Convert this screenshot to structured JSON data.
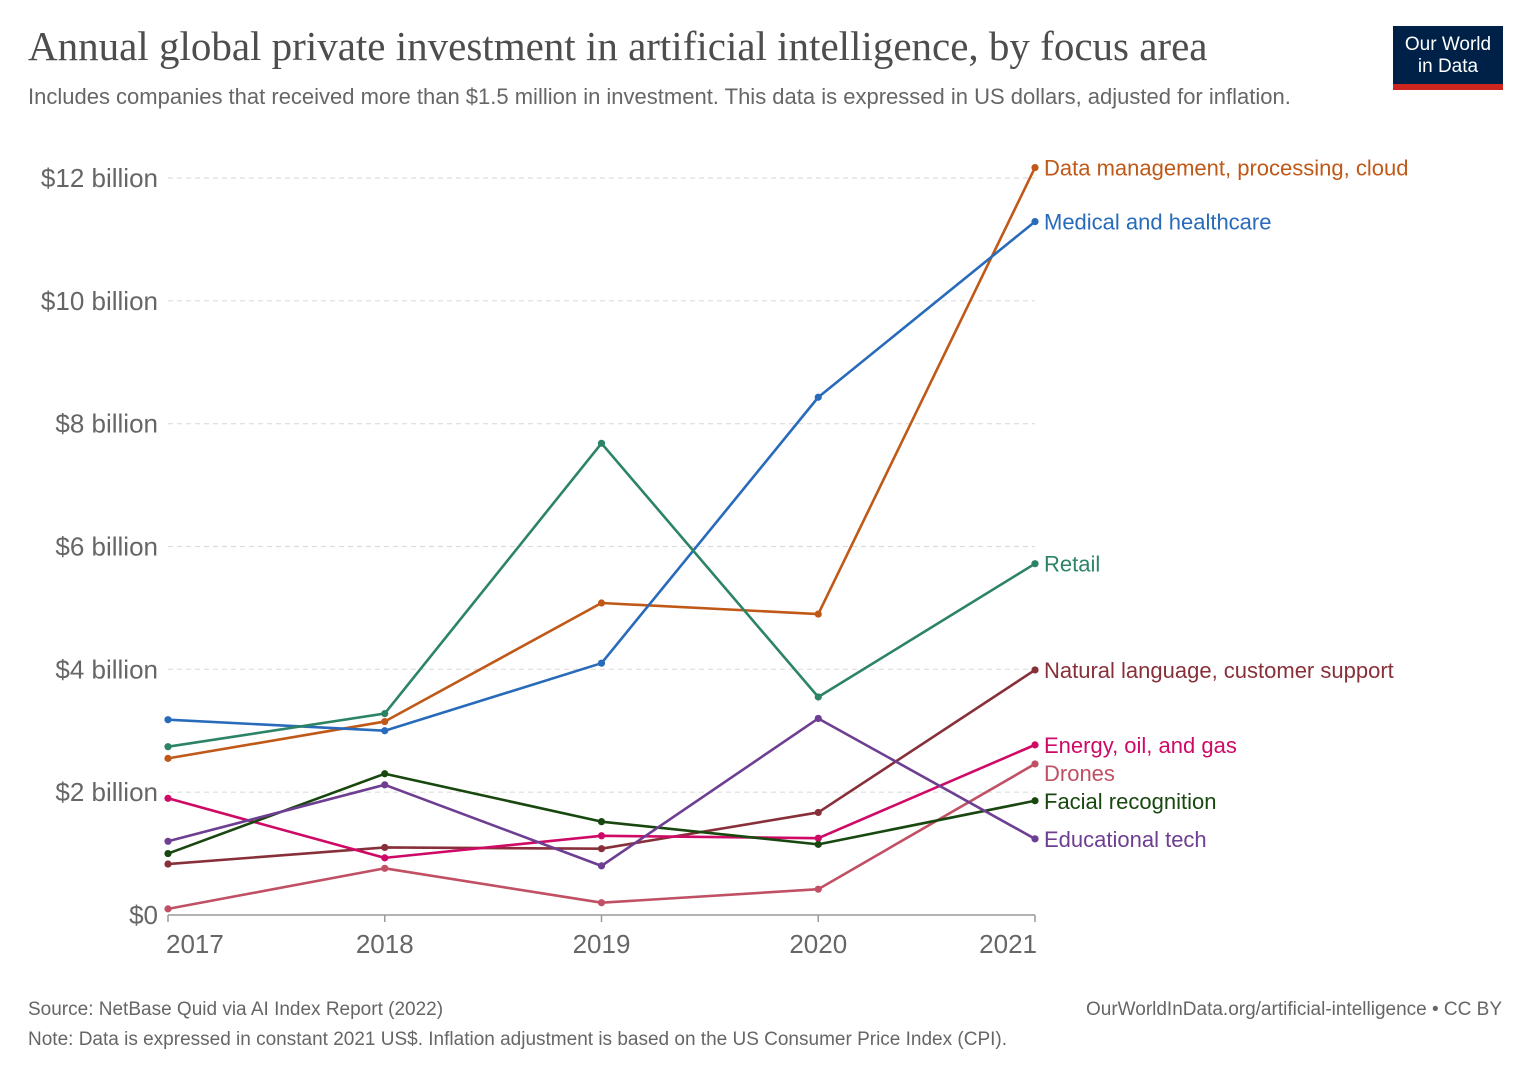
{
  "header": {
    "title": "Annual global private investment in artificial intelligence, by focus area",
    "subtitle": "Includes companies that received more than $1.5 million in investment. This data is expressed in US dollars, adjusted for inflation.",
    "logo_line1": "Our World",
    "logo_line2": "in Data"
  },
  "footer": {
    "source": "Source: NetBase Quid via AI Index Report (2022)",
    "url": "OurWorldInData.org/artificial-intelligence • CC BY",
    "note": "Note: Data is expressed in constant 2021 US$. Inflation adjustment is based on the US Consumer Price Index (CPI)."
  },
  "colors": {
    "logo_bg": "#002147",
    "logo_accent": "#ce261e",
    "grid": "#dddddd",
    "axis": "#999999",
    "tick_text": "#666666"
  },
  "chart_data": {
    "type": "line",
    "title": "Annual global private investment in artificial intelligence, by focus area",
    "xlabel": "",
    "ylabel": "",
    "x": [
      2017,
      2018,
      2019,
      2020,
      2021
    ],
    "ylim": [
      0,
      12
    ],
    "yticks": [
      {
        "value": 0,
        "label": "$0"
      },
      {
        "value": 2,
        "label": "$2 billion"
      },
      {
        "value": 4,
        "label": "$4 billion"
      },
      {
        "value": 6,
        "label": "$6 billion"
      },
      {
        "value": 8,
        "label": "$8 billion"
      },
      {
        "value": 10,
        "label": "$10 billion"
      },
      {
        "value": 12,
        "label": "$12 billion"
      }
    ],
    "grid": true,
    "legend": "line-end labels on the right",
    "series": [
      {
        "name": "Data management, processing, cloud",
        "color": "#c05917",
        "values": [
          2.55,
          3.15,
          5.08,
          4.9,
          12.17
        ]
      },
      {
        "name": "Medical and healthcare",
        "color": "#286bbb",
        "values": [
          3.18,
          3.0,
          4.1,
          8.43,
          11.29
        ]
      },
      {
        "name": "Retail",
        "color": "#2c8465",
        "values": [
          2.74,
          3.28,
          7.68,
          3.55,
          5.72
        ]
      },
      {
        "name": "Natural language, customer support",
        "color": "#883039",
        "values": [
          0.83,
          1.1,
          1.08,
          1.67,
          3.99
        ]
      },
      {
        "name": "Energy, oil, and gas",
        "color": "#cf0a66",
        "values": [
          1.9,
          0.93,
          1.29,
          1.25,
          2.77
        ]
      },
      {
        "name": "Drones",
        "color": "#c15065",
        "values": [
          0.1,
          0.76,
          0.2,
          0.42,
          2.46
        ]
      },
      {
        "name": "Facial recognition",
        "color": "#18470f",
        "values": [
          1.0,
          2.3,
          1.52,
          1.15,
          1.86
        ]
      },
      {
        "name": "Educational tech",
        "color": "#6d3e91",
        "values": [
          1.2,
          2.12,
          0.8,
          3.2,
          1.24
        ]
      }
    ]
  }
}
